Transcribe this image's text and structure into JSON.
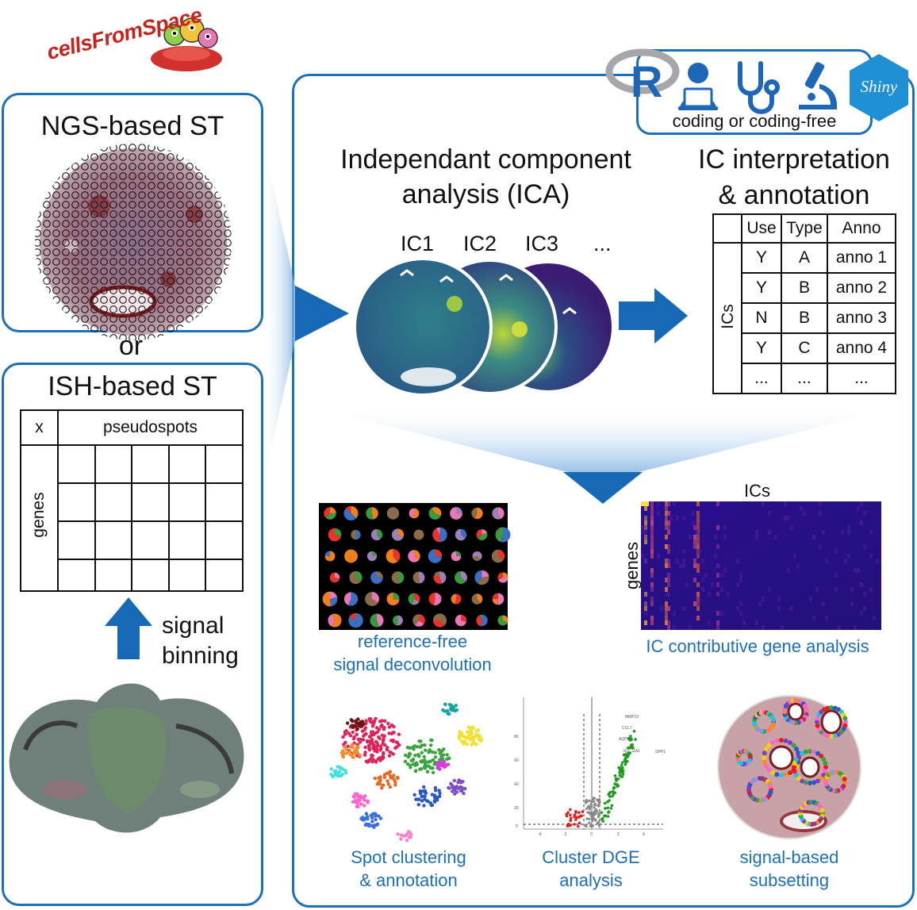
{
  "logo": {
    "text": "cellsFromSpace"
  },
  "ngs_panel": {
    "title": "NGS-based ST"
  },
  "or_text": "or",
  "ish_panel": {
    "title": "ISH-based ST",
    "table": {
      "corner": "x",
      "header": "pseudospots",
      "row_label": "genes"
    },
    "arrow_label_1": "signal",
    "arrow_label_2": "binning"
  },
  "tools": {
    "subtitle": "coding or coding-free",
    "icons": [
      "r-logo-icon",
      "coder-icon",
      "stethoscope-icon",
      "microscope-icon",
      "shiny-logo-icon"
    ],
    "r_letter": "R",
    "shiny_text": "Shiny"
  },
  "ica": {
    "title_line1": "Independant component",
    "title_line2": "analysis (ICA)",
    "components": [
      "IC1",
      "IC2",
      "IC3",
      "..."
    ]
  },
  "interp": {
    "title_line1": "IC interpretation",
    "title_line2": "& annotation",
    "row_label": "ICs",
    "headers": [
      "Use",
      "Type",
      "Anno"
    ],
    "rows": [
      [
        "Y",
        "A",
        "anno 1"
      ],
      [
        "Y",
        "B",
        "anno 2"
      ],
      [
        "N",
        "B",
        "anno 3"
      ],
      [
        "Y",
        "C",
        "anno 4"
      ],
      [
        "...",
        "...",
        "..."
      ]
    ]
  },
  "outputs": {
    "deconv": {
      "line1": "reference-free",
      "line2": "signal deconvolution"
    },
    "heatmap": {
      "x_label": "ICs",
      "y_label": "genes",
      "caption": "IC contributive gene analysis"
    },
    "cluster": {
      "line1": "Spot clustering",
      "line2": "& annotation"
    },
    "dge": {
      "line1": "Cluster DGE",
      "line2": "analysis",
      "gene_labels": [
        "MMP12",
        "CCL7",
        "AQP6",
        "SLC11A1",
        "SPP1"
      ],
      "y_ticks": [
        "80",
        "60",
        "40",
        "20",
        "0"
      ],
      "x_ticks": [
        "-4",
        "-2",
        "0",
        "2",
        "4"
      ]
    },
    "subset": {
      "line1": "signal-based",
      "line2": "subsetting"
    }
  },
  "colors": {
    "accent": "#1d6fb8",
    "arrow": "#1769b5"
  }
}
